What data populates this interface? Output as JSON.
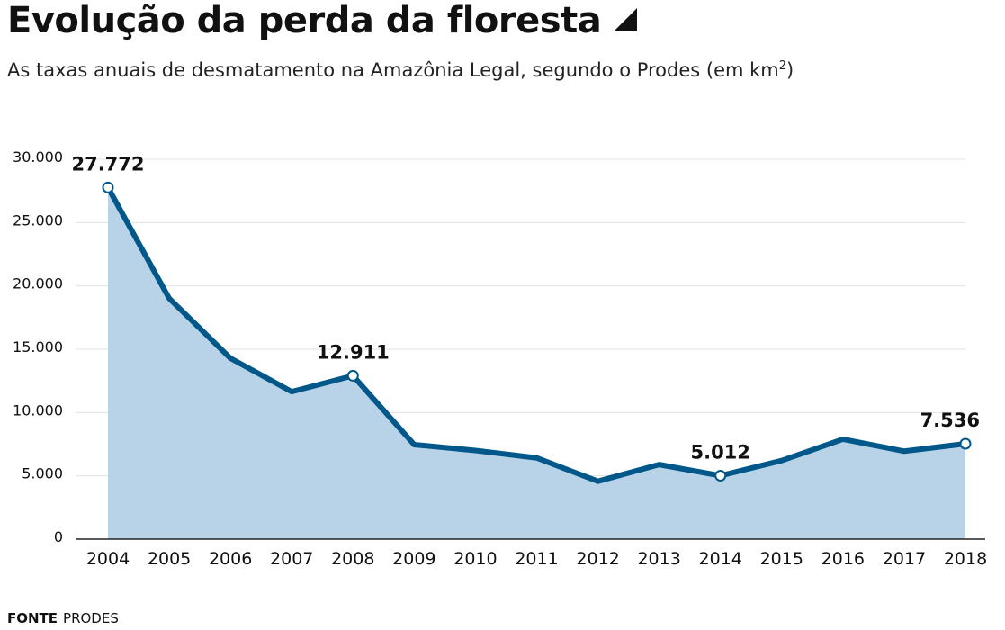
{
  "header": {
    "title": "Evolução da perda da floresta",
    "subtitle_main": "As taxas anuais de desmatamento na Amazônia Legal, segundo o Prodes (em km",
    "subtitle_sup": "2",
    "subtitle_end": ")"
  },
  "source": {
    "label": "FONTE",
    "value": "PRODES"
  },
  "colors": {
    "line": "#00578a",
    "area": "#b8d3e8",
    "grid": "#e3e3e3"
  },
  "chart_data": {
    "type": "area",
    "title": "Evolução da perda da floresta",
    "x": [
      "2004",
      "2005",
      "2006",
      "2007",
      "2008",
      "2009",
      "2010",
      "2011",
      "2012",
      "2013",
      "2014",
      "2015",
      "2016",
      "2017",
      "2018"
    ],
    "series": [
      {
        "values": [
          27772,
          19014,
          14286,
          11651,
          12911,
          7464,
          7000,
          6418,
          4571,
          5891,
          5012,
          6207,
          7893,
          6947,
          7536
        ]
      }
    ],
    "ylim": [
      0,
      30000
    ],
    "yticks": [
      0,
      5000,
      10000,
      15000,
      20000,
      25000,
      30000
    ],
    "ytick_labels": [
      "0",
      "5.000",
      "10.000",
      "15.000",
      "20.000",
      "25.000",
      "30.000"
    ],
    "annotations": [
      {
        "x": "2004",
        "label": "27.772"
      },
      {
        "x": "2008",
        "label": "12.911"
      },
      {
        "x": "2014",
        "label": "5.012"
      },
      {
        "x": "2018",
        "label": "7.536"
      }
    ],
    "grid": true
  }
}
